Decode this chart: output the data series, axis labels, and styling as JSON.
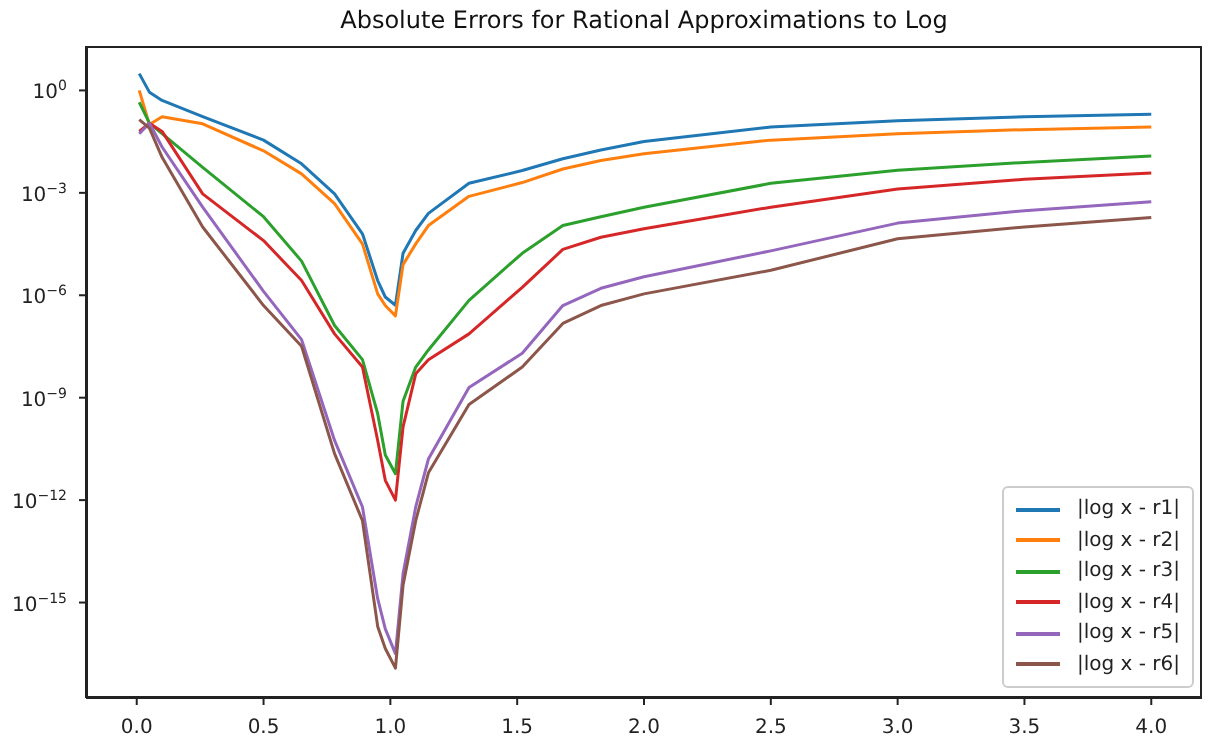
{
  "chart_data": {
    "type": "line",
    "title": "Absolute Errors for Rational Approximations to Log",
    "x": [
      0.01,
      0.05,
      0.1,
      0.26,
      0.5,
      0.65,
      0.78,
      0.89,
      0.95,
      0.98,
      1.02,
      1.05,
      1.1,
      1.15,
      1.31,
      1.52,
      1.68,
      1.83,
      2.0,
      2.5,
      3.0,
      3.5,
      4.0
    ],
    "series": [
      {
        "name": "|log x - r1|",
        "color": "#1f77b4",
        "values": [
          3.1,
          0.89,
          0.51,
          0.17,
          0.035,
          0.0071,
          0.00093,
          6.3e-05,
          2.7e-06,
          8.9e-07,
          5.1e-07,
          1.7e-05,
          7.9e-05,
          0.00025,
          0.0019,
          0.0045,
          0.01,
          0.018,
          0.032,
          0.085,
          0.13,
          0.17,
          0.2
        ]
      },
      {
        "name": "|log x - r2|",
        "color": "#ff7f0e",
        "values": [
          1,
          0.1,
          0.17,
          0.105,
          0.017,
          0.0036,
          0.00048,
          3.2e-05,
          1.1e-06,
          5e-07,
          2.5e-07,
          7.9e-06,
          3.2e-05,
          0.00011,
          0.00079,
          0.002,
          0.005,
          0.0089,
          0.014,
          0.035,
          0.054,
          0.071,
          0.085
        ]
      },
      {
        "name": "|log x - r3|",
        "color": "#2ca02c",
        "values": [
          0.45,
          0.11,
          0.054,
          0.0056,
          0.0002,
          1e-05,
          1.3e-07,
          1.3e-08,
          3.4e-10,
          2.1e-11,
          5.9e-12,
          7.9e-10,
          7.9e-09,
          2.5e-08,
          7.1e-07,
          1.7e-05,
          0.00011,
          0.0002,
          0.00038,
          0.0019,
          0.0046,
          0.0078,
          0.012
        ]
      },
      {
        "name": "|log x - r4|",
        "color": "#d62728",
        "values": [
          0.063,
          0.11,
          0.063,
          0.00093,
          4e-05,
          2.7e-06,
          7.4e-08,
          7.9e-09,
          5.6e-11,
          3.8e-12,
          1e-12,
          1.4e-10,
          5e-09,
          1.3e-08,
          7.4e-08,
          1.7e-06,
          2.2e-05,
          5e-05,
          8.9e-05,
          0.00038,
          0.0013,
          0.0025,
          0.0038
        ]
      },
      {
        "name": "|log x - r5|",
        "color": "#9467bd",
        "values": [
          0.054,
          0.11,
          0.022,
          0.00038,
          1.3e-06,
          5e-08,
          5.6e-11,
          6.3e-13,
          1.3e-15,
          1.7e-16,
          3.2e-17,
          6.9e-15,
          6.3e-13,
          1.6e-11,
          2e-09,
          2e-08,
          5e-07,
          1.6e-06,
          3.5e-06,
          2e-05,
          0.00013,
          0.0003,
          0.00055
        ]
      },
      {
        "name": "|log x - r6|",
        "color": "#8c564b",
        "values": [
          0.14,
          0.079,
          0.011,
          0.0001,
          5e-07,
          3.2e-08,
          2.3e-11,
          2.5e-13,
          2e-16,
          4.5e-17,
          1.2e-17,
          3.2e-15,
          2.5e-13,
          6.3e-12,
          6.3e-10,
          7.9e-09,
          1.5e-07,
          5e-07,
          1.1e-06,
          5.4e-06,
          4.5e-05,
          0.0001,
          0.00019
        ]
      }
    ],
    "log": "y",
    "xlim": [
      -0.2,
      4.2
    ],
    "xticks": [
      {
        "value": 0,
        "label": "0.0"
      },
      0.5,
      {
        "value": 1,
        "label": "1.0"
      },
      1.5,
      {
        "value": 2,
        "label": "2.0"
      },
      2.5,
      {
        "value": 3,
        "label": "3.0"
      },
      3.5,
      {
        "value": 4,
        "label": "4.0"
      }
    ],
    "ylim": [
      1.6e-18,
      20
    ],
    "yticks": [
      {
        "value": 1,
        "label": "10$^{0}$"
      },
      {
        "value": 0.001,
        "label": "10$^{−3}$"
      },
      {
        "value": 1e-06,
        "label": "10$^{−6}$"
      },
      {
        "value": 1e-09,
        "label": "10$^{−9}$"
      },
      {
        "value": 1e-12,
        "label": "10$^{−12}$"
      },
      {
        "value": 1e-15,
        "label": "10$^{−15}$"
      }
    ],
    "grid": false,
    "legend": "bottom right"
  }
}
